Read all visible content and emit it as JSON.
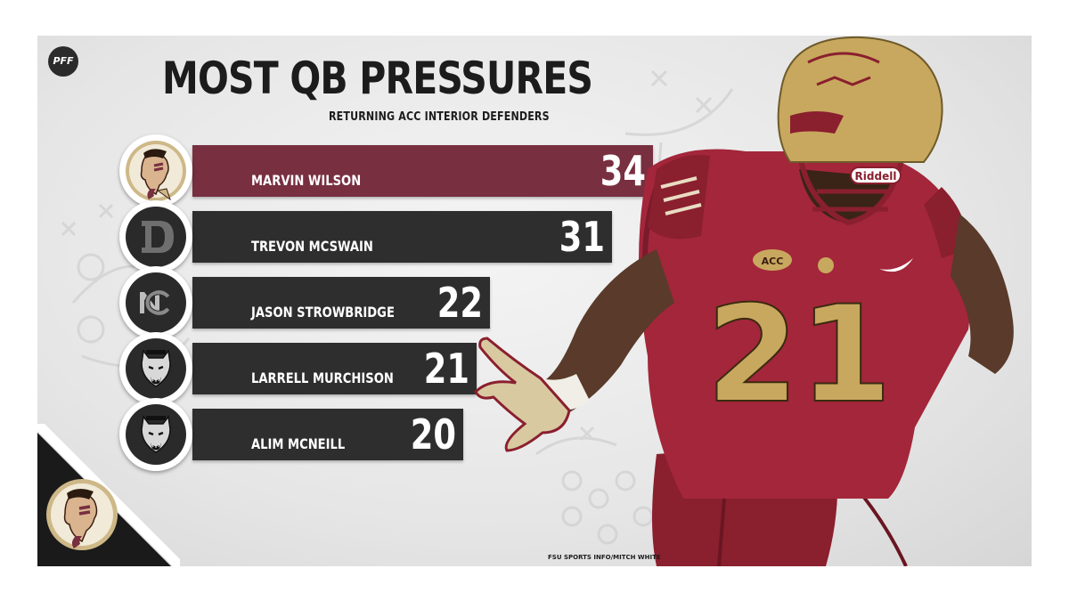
{
  "brand": {
    "pff_logo": "PFF",
    "credit": "FSU SPORTS INFO/MITCH WHITE",
    "jersey_number": "21",
    "helmet_brand": "Riddell",
    "patch": "ACC"
  },
  "colors": {
    "fsu_garnet": "#782f40",
    "bar_dark": "#2e2e2e",
    "gold": "#ceb888",
    "text": "#1c1c1c"
  },
  "chart_data": {
    "type": "bar",
    "orientation": "horizontal",
    "title": "MOST QB PRESSURES",
    "subtitle": "RETURNING ACC INTERIOR DEFENDERS",
    "categories": [
      "MARVIN WILSON",
      "TREVON MCSWAIN",
      "JASON STROWBRIDGE",
      "LARRELL MURCHISON",
      "ALIM MCNEILL"
    ],
    "values": [
      34,
      31,
      22,
      21,
      20
    ],
    "teams": [
      "Florida State",
      "Duke",
      "North Carolina",
      "NC State",
      "NC State"
    ],
    "team_icons": [
      "fsu-seminole-logo-icon",
      "duke-d-logo-icon",
      "unc-nc-logo-icon",
      "nc-state-wolf-logo-icon",
      "nc-state-wolf-logo-icon"
    ],
    "bar_colors": [
      "#782f40",
      "#2e2e2e",
      "#2e2e2e",
      "#2e2e2e",
      "#2e2e2e"
    ],
    "grid": false,
    "legend": "none"
  }
}
